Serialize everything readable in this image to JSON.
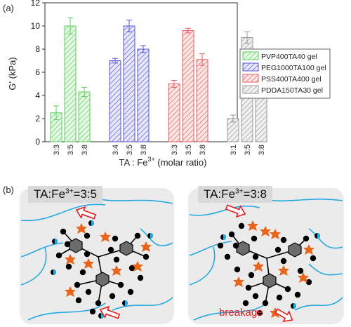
{
  "panel_a_label": "(a)",
  "panel_b_label": "(b)",
  "chart_data": {
    "type": "bar",
    "ylabel": "G' (kPa)",
    "xlabel": "TA : Fe3+ (molar ratio)",
    "xlabel_main": "TA : Fe",
    "xlabel_sup": "3+",
    "xlabel_tail": " (molar ratio)",
    "ylim": [
      0,
      12
    ],
    "yticks": [
      0,
      2,
      4,
      6,
      8,
      10,
      12
    ],
    "grid": false,
    "legend_position": "right",
    "groups": [
      {
        "name": "PVP400TA40 gel",
        "color": "#5ccf5c",
        "fill": "#e6f8e6",
        "categories": [
          "3:3",
          "3:5",
          "3:8"
        ],
        "values": [
          2.5,
          10.0,
          4.3
        ],
        "errors": [
          0.6,
          0.7,
          0.4
        ]
      },
      {
        "name": "PEG1000TA100 gel",
        "color": "#5a5ad8",
        "fill": "#e7e7f9",
        "categories": [
          "3:4",
          "3:5",
          "3:8"
        ],
        "values": [
          7.0,
          10.0,
          8.0
        ],
        "errors": [
          0.2,
          0.5,
          0.3
        ]
      },
      {
        "name": "PSS400TA400 gel",
        "color": "#e86060",
        "fill": "#fbe6e6",
        "categories": [
          "3:3",
          "3:5",
          "3:8"
        ],
        "values": [
          5.0,
          9.6,
          7.1
        ],
        "errors": [
          0.3,
          0.2,
          0.5
        ]
      },
      {
        "name": "PDDA150TA30 gel",
        "color": "#9a9a9a",
        "fill": "#f0f0f0",
        "categories": [
          "3:1",
          "3:5",
          "3:8"
        ],
        "values": [
          2.0,
          9.0,
          5.8
        ],
        "errors": [
          0.3,
          0.5,
          0.6
        ]
      }
    ]
  },
  "schematic": {
    "left_title_main": "TA:Fe",
    "left_title_sup": "3+",
    "left_title_tail": "=3:5",
    "right_title_main": "TA:Fe",
    "right_title_sup": "3+",
    "right_title_tail": "=3:8",
    "breakage_label": "breakage",
    "colors": {
      "polymer": "#29a9e0",
      "iron": "#e8651c",
      "ta_core": "#707070",
      "node": "#000000",
      "arrow": "#e02020",
      "panel": "#ebebeb"
    }
  }
}
